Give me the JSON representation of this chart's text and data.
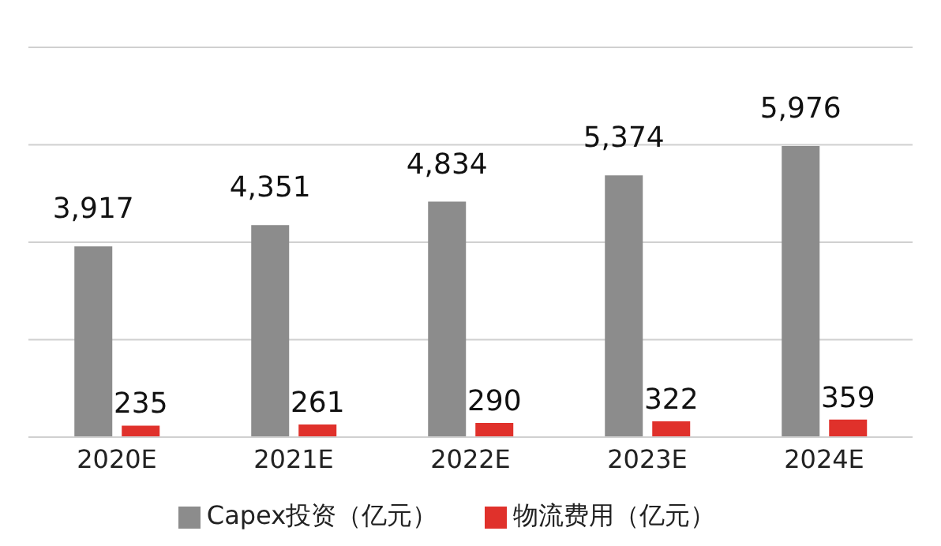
{
  "chart_data": {
    "type": "bar",
    "categories": [
      "2020E",
      "2021E",
      "2022E",
      "2023E",
      "2024E"
    ],
    "series": [
      {
        "name": "Capex投资（亿元）",
        "color": "#8c8c8c",
        "values": [
          3917,
          4351,
          4834,
          5374,
          5976
        ],
        "value_labels": [
          "3,917",
          "4,351",
          "4,834",
          "5,374",
          "5,976"
        ]
      },
      {
        "name": "物流费用（亿元）",
        "color": "#e0312b",
        "values": [
          235,
          261,
          290,
          322,
          359
        ],
        "value_labels": [
          "235",
          "261",
          "290",
          "322",
          "359"
        ]
      }
    ],
    "ylim": [
      0,
      8000
    ],
    "yticks": [
      {
        "value": 0,
        "label": null
      },
      {
        "value": 2000,
        "label": null
      },
      {
        "value": 4000,
        "label": null
      },
      {
        "value": 6000,
        "label": null
      },
      {
        "value": 8000,
        "label": null
      }
    ],
    "tick_labels": "x",
    "grid": "y",
    "legend": "bottom"
  }
}
